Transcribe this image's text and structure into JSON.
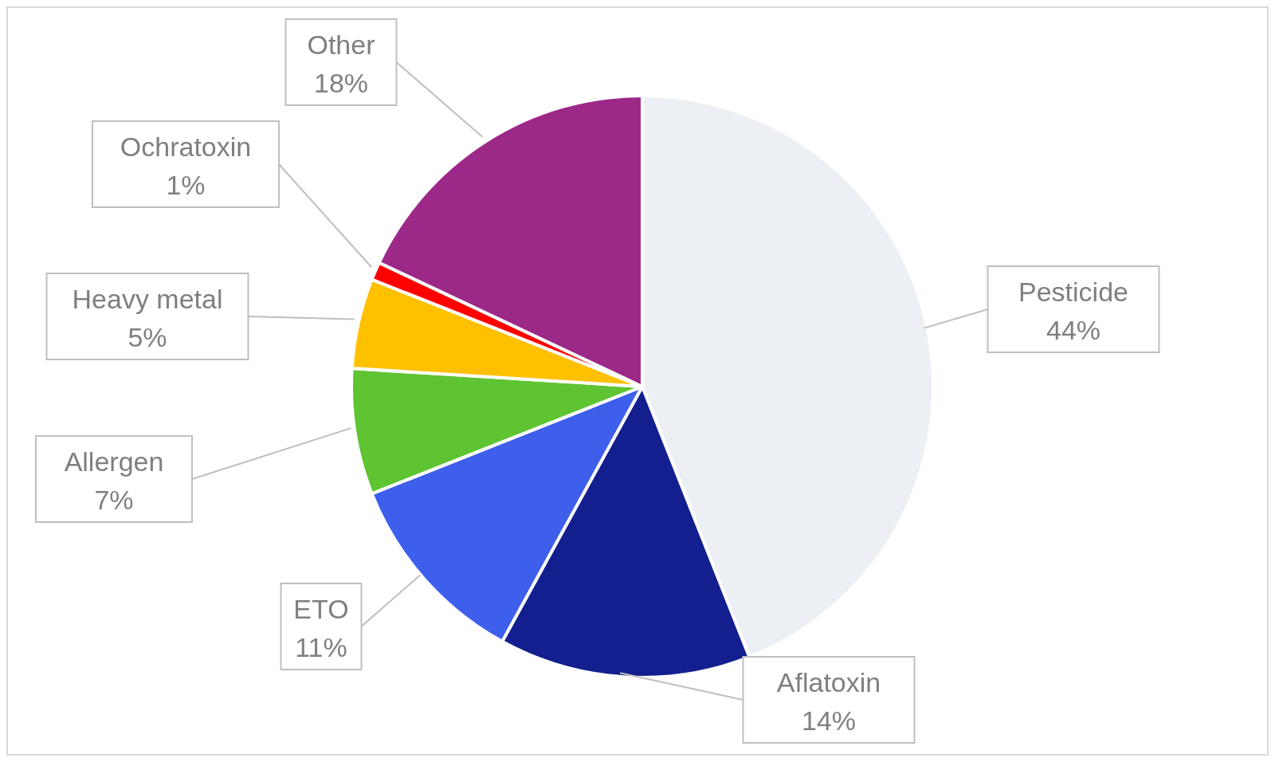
{
  "chart_data": {
    "type": "pie",
    "categories": [
      "Pesticide",
      "Aflatoxin",
      "ETO",
      "Allergen",
      "Heavy metal",
      "Ochratoxin",
      "Other"
    ],
    "values": [
      44,
      14,
      11,
      7,
      5,
      1,
      18
    ],
    "value_labels": [
      "44%",
      "14%",
      "11%",
      "7%",
      "5%",
      "1%",
      "18%"
    ],
    "colors": [
      "#eceff4",
      "#131f8e",
      "#3e5feb",
      "#5fc432",
      "#ffc000",
      "#ff0000",
      "#9c2888"
    ],
    "legend": false
  }
}
